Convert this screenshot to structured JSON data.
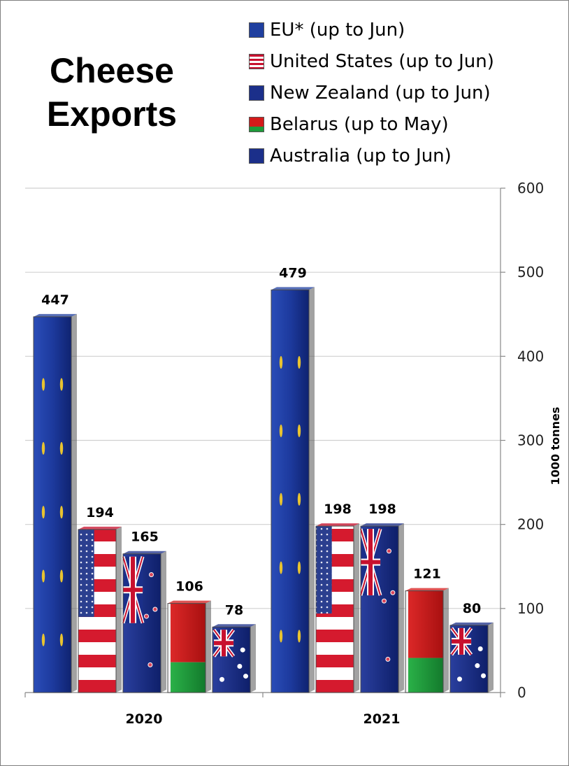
{
  "chart_data": {
    "type": "bar",
    "title": "Cheese\nExports",
    "title_lines": [
      "Cheese",
      "Exports"
    ],
    "categories": [
      "2020",
      "2021"
    ],
    "series": [
      {
        "name": "EU* (up to Jun)",
        "flag": "eu",
        "values": [
          447,
          479
        ],
        "color": "#1f3f9f"
      },
      {
        "name": "United States (up to Jun)",
        "flag": "us",
        "values": [
          194,
          198
        ],
        "color": "#c8102e"
      },
      {
        "name": "New Zealand (up to Jun)",
        "flag": "nz",
        "values": [
          165,
          198
        ],
        "color": "#1b2f8a"
      },
      {
        "name": "Belarus (up to May)",
        "flag": "by",
        "values": [
          106,
          121
        ],
        "color": "#d41a1a"
      },
      {
        "name": "Australia (up to Jun)",
        "flag": "au",
        "values": [
          78,
          80
        ],
        "color": "#1b2f8a"
      }
    ],
    "ylabel": "1000 tonnes",
    "ylim": [
      0,
      600
    ],
    "yticks": [
      0,
      100,
      200,
      300,
      400,
      500,
      600
    ],
    "grid": true,
    "legend": "top-right",
    "y_axis_side": "right"
  }
}
